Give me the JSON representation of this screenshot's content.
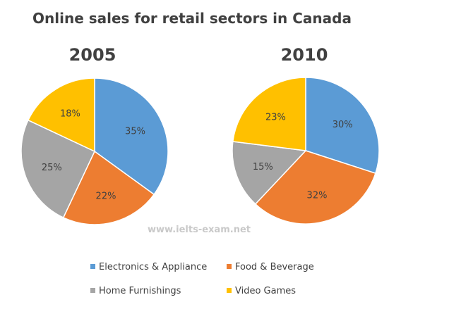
{
  "chart_data": [
    {
      "type": "pie",
      "title": "Online sales for retail sectors in Canada",
      "subtitle": "2005",
      "categories": [
        "Electronics & Appliance",
        "Food & Beverage",
        "Home Furnishings",
        "Video Games"
      ],
      "values": [
        35,
        22,
        25,
        18
      ],
      "labels": [
        "35%",
        "22%",
        "25%",
        "18%"
      ],
      "colors": [
        "#5b9bd5",
        "#ed7d31",
        "#a5a5a5",
        "#ffc000"
      ],
      "legend": "bottom"
    },
    {
      "type": "pie",
      "title": "Online sales for retail sectors in Canada",
      "subtitle": "2010",
      "categories": [
        "Electronics & Appliance",
        "Food & Beverage",
        "Home Furnishings",
        "Video Games"
      ],
      "values": [
        30,
        32,
        15,
        23
      ],
      "labels": [
        "30%",
        "32%",
        "15%",
        "23%"
      ],
      "colors": [
        "#5b9bd5",
        "#ed7d31",
        "#a5a5a5",
        "#ffc000"
      ],
      "legend": "bottom"
    }
  ],
  "title": "Online sales for retail sectors in Canada",
  "years": [
    "2005",
    "2010"
  ],
  "watermark": "www.ielts-exam.net",
  "legend": [
    {
      "label": "Electronics & Appliance",
      "color": "#5b9bd5"
    },
    {
      "label": "Food & Beverage",
      "color": "#ed7d31"
    },
    {
      "label": "Home Furnishings",
      "color": "#a5a5a5"
    },
    {
      "label": "Video Games",
      "color": "#ffc000"
    }
  ]
}
